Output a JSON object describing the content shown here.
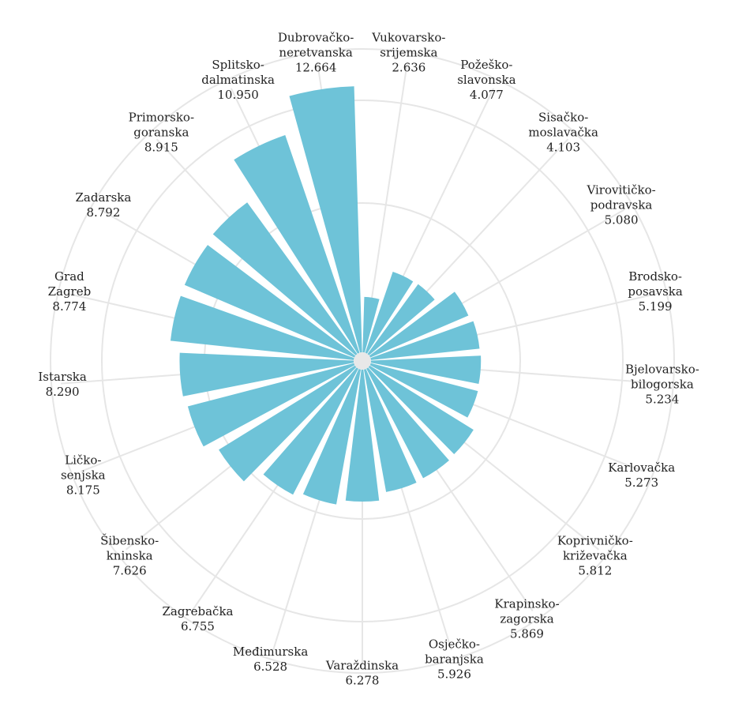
{
  "chart_data": {
    "type": "bar",
    "subtype": "radial",
    "color": "#6ec3d8",
    "grid": true,
    "legend": "none",
    "ylim": [
      0,
      13
    ],
    "categories": [
      [
        "Vukovarsko-",
        "srijemska"
      ],
      [
        "Požeško-",
        "slavonska"
      ],
      [
        "Sisačko-",
        "moslavačka"
      ],
      [
        "Virovitičko-",
        "podravska"
      ],
      [
        "Brodsko-",
        "posavska"
      ],
      [
        "Bjelovarsko-",
        "bilogorska"
      ],
      [
        "Karlovačka"
      ],
      [
        "Koprivničko-",
        "križevačka"
      ],
      [
        "Krapinsko-",
        "zagorska"
      ],
      [
        "Osječko-",
        "baranjska"
      ],
      [
        "Varaždinska"
      ],
      [
        "Međimurska"
      ],
      [
        "Zagrebačka"
      ],
      [
        "Šibensko-",
        "kninska"
      ],
      [
        "Ličko-",
        "senjska"
      ],
      [
        "Istarska"
      ],
      [
        "Grad",
        "Zagreb"
      ],
      [
        "Zadarska"
      ],
      [
        "Primorsko-",
        "goranska"
      ],
      [
        "Splitsko-",
        "dalmatinska"
      ],
      [
        "Dubrovačko-",
        "neretvanska"
      ]
    ],
    "value_labels": [
      "2.636",
      "4.077",
      "4.103",
      "5.080",
      "5.199",
      "5.234",
      "5.273",
      "5.812",
      "5.869",
      "5.926",
      "6.278",
      "6.528",
      "6.755",
      "7.626",
      "8.175",
      "8.290",
      "8.774",
      "8.792",
      "8.915",
      "10.950",
      "12.664"
    ],
    "values": [
      2.636,
      4.077,
      4.103,
      5.08,
      5.199,
      5.234,
      5.273,
      5.812,
      5.869,
      5.926,
      6.278,
      6.528,
      6.755,
      7.626,
      8.175,
      8.29,
      8.774,
      8.792,
      8.915,
      10.95,
      12.664
    ]
  }
}
